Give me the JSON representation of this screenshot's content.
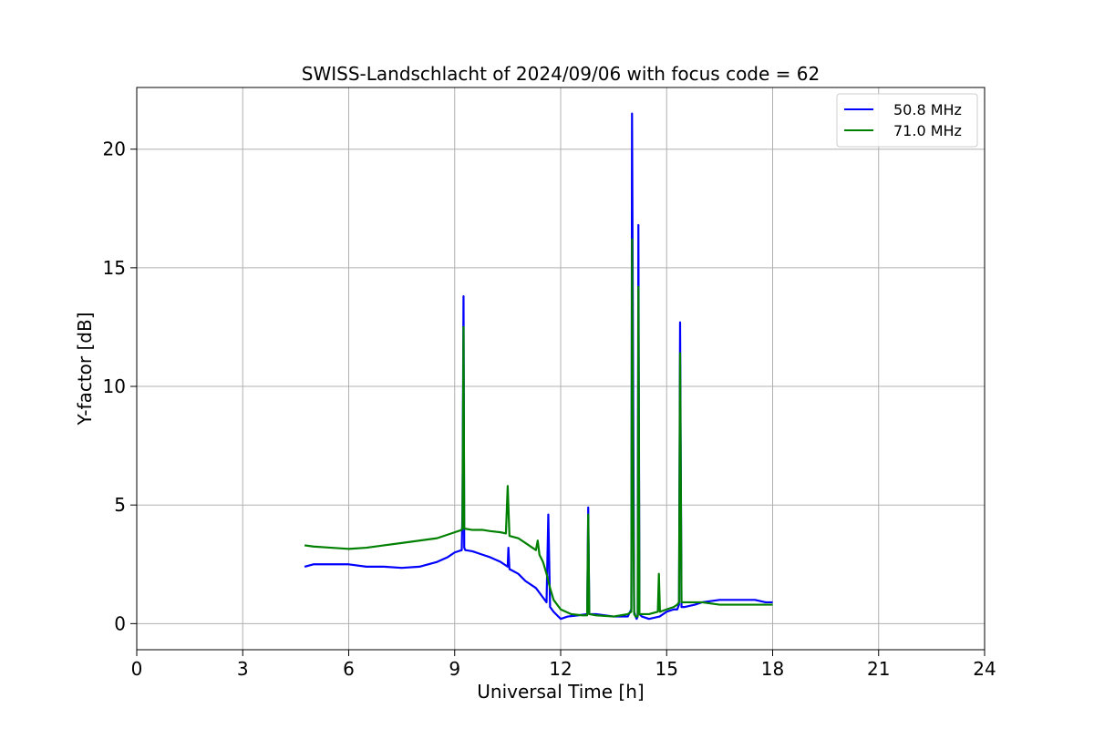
{
  "chart_data": {
    "type": "line",
    "title": "SWISS-Landschlacht of 2024/09/06 with focus code = 62",
    "xlabel": "Universal Time [h]",
    "ylabel": "Y-factor [dB]",
    "xlim": [
      0,
      24
    ],
    "ylim": [
      -1.1,
      22.6
    ],
    "xticks": [
      0,
      3,
      6,
      9,
      12,
      15,
      18,
      21,
      24
    ],
    "yticks": [
      0,
      5,
      10,
      15,
      20
    ],
    "xtick_labels": [
      "0",
      "3",
      "6",
      "9",
      "12",
      "15",
      "18",
      "21",
      "24"
    ],
    "ytick_labels": [
      "0",
      "5",
      "10",
      "15",
      "20"
    ],
    "grid": true,
    "legend_position": "top-right",
    "series": [
      {
        "name": "50.8 MHz",
        "color": "#0000ff",
        "x": [
          4.75,
          5.0,
          5.5,
          6.0,
          6.5,
          7.0,
          7.5,
          8.0,
          8.5,
          8.8,
          9.0,
          9.2,
          9.22,
          9.25,
          9.27,
          9.3,
          9.5,
          9.8,
          10.0,
          10.3,
          10.5,
          10.52,
          10.55,
          10.8,
          11.0,
          11.3,
          11.5,
          11.6,
          11.65,
          11.7,
          11.8,
          12.0,
          12.2,
          12.5,
          12.75,
          12.78,
          12.81,
          13.0,
          13.5,
          13.9,
          14.0,
          14.02,
          14.05,
          14.08,
          14.12,
          14.15,
          14.18,
          14.2,
          14.23,
          14.3,
          14.5,
          14.8,
          15.0,
          15.2,
          15.3,
          15.35,
          15.38,
          15.42,
          15.5,
          15.8,
          16.0,
          16.5,
          17.0,
          17.5,
          17.8,
          18.0
        ],
        "y": [
          2.4,
          2.5,
          2.5,
          2.5,
          2.4,
          2.4,
          2.35,
          2.4,
          2.6,
          2.8,
          3.0,
          3.1,
          4.8,
          13.8,
          3.2,
          3.1,
          3.05,
          2.9,
          2.8,
          2.6,
          2.4,
          3.2,
          2.3,
          2.1,
          1.8,
          1.5,
          1.1,
          0.9,
          4.6,
          0.7,
          0.5,
          0.2,
          0.3,
          0.35,
          0.4,
          4.9,
          0.4,
          0.4,
          0.3,
          0.3,
          0.6,
          21.5,
          10.4,
          0.5,
          0.3,
          0.2,
          0.3,
          16.8,
          0.4,
          0.3,
          0.2,
          0.3,
          0.5,
          0.6,
          0.6,
          0.8,
          12.7,
          0.7,
          0.7,
          0.8,
          0.9,
          1.0,
          1.0,
          1.0,
          0.9,
          0.9
        ]
      },
      {
        "name": "71.0 MHz",
        "color": "#008000",
        "x": [
          4.75,
          5.0,
          5.5,
          6.0,
          6.5,
          7.0,
          7.5,
          8.0,
          8.5,
          8.8,
          9.0,
          9.2,
          9.22,
          9.25,
          9.27,
          9.3,
          9.5,
          9.8,
          10.0,
          10.3,
          10.45,
          10.5,
          10.55,
          10.8,
          11.0,
          11.2,
          11.3,
          11.35,
          11.4,
          11.5,
          11.6,
          11.7,
          11.8,
          12.0,
          12.3,
          12.6,
          12.75,
          12.78,
          12.81,
          13.0,
          13.5,
          13.9,
          14.0,
          14.02,
          14.05,
          14.08,
          14.12,
          14.15,
          14.18,
          14.2,
          14.23,
          14.3,
          14.5,
          14.75,
          14.78,
          14.81,
          15.0,
          15.2,
          15.3,
          15.35,
          15.38,
          15.42,
          15.5,
          15.8,
          16.0,
          16.5,
          17.0,
          17.5,
          17.8,
          18.0
        ],
        "y": [
          3.3,
          3.25,
          3.2,
          3.15,
          3.2,
          3.3,
          3.4,
          3.5,
          3.6,
          3.75,
          3.85,
          3.95,
          4.1,
          12.5,
          4.0,
          4.0,
          3.95,
          3.95,
          3.9,
          3.85,
          3.8,
          5.8,
          3.7,
          3.6,
          3.4,
          3.2,
          3.1,
          3.5,
          2.9,
          2.6,
          2.1,
          1.5,
          1.0,
          0.6,
          0.4,
          0.35,
          0.35,
          4.6,
          0.4,
          0.35,
          0.3,
          0.4,
          0.5,
          16.2,
          5.5,
          0.4,
          0.3,
          0.3,
          0.3,
          14.2,
          0.4,
          0.4,
          0.4,
          0.5,
          2.1,
          0.5,
          0.6,
          0.7,
          0.8,
          0.9,
          11.4,
          0.9,
          0.9,
          0.9,
          0.9,
          0.8,
          0.8,
          0.8,
          0.8,
          0.8
        ]
      }
    ]
  }
}
